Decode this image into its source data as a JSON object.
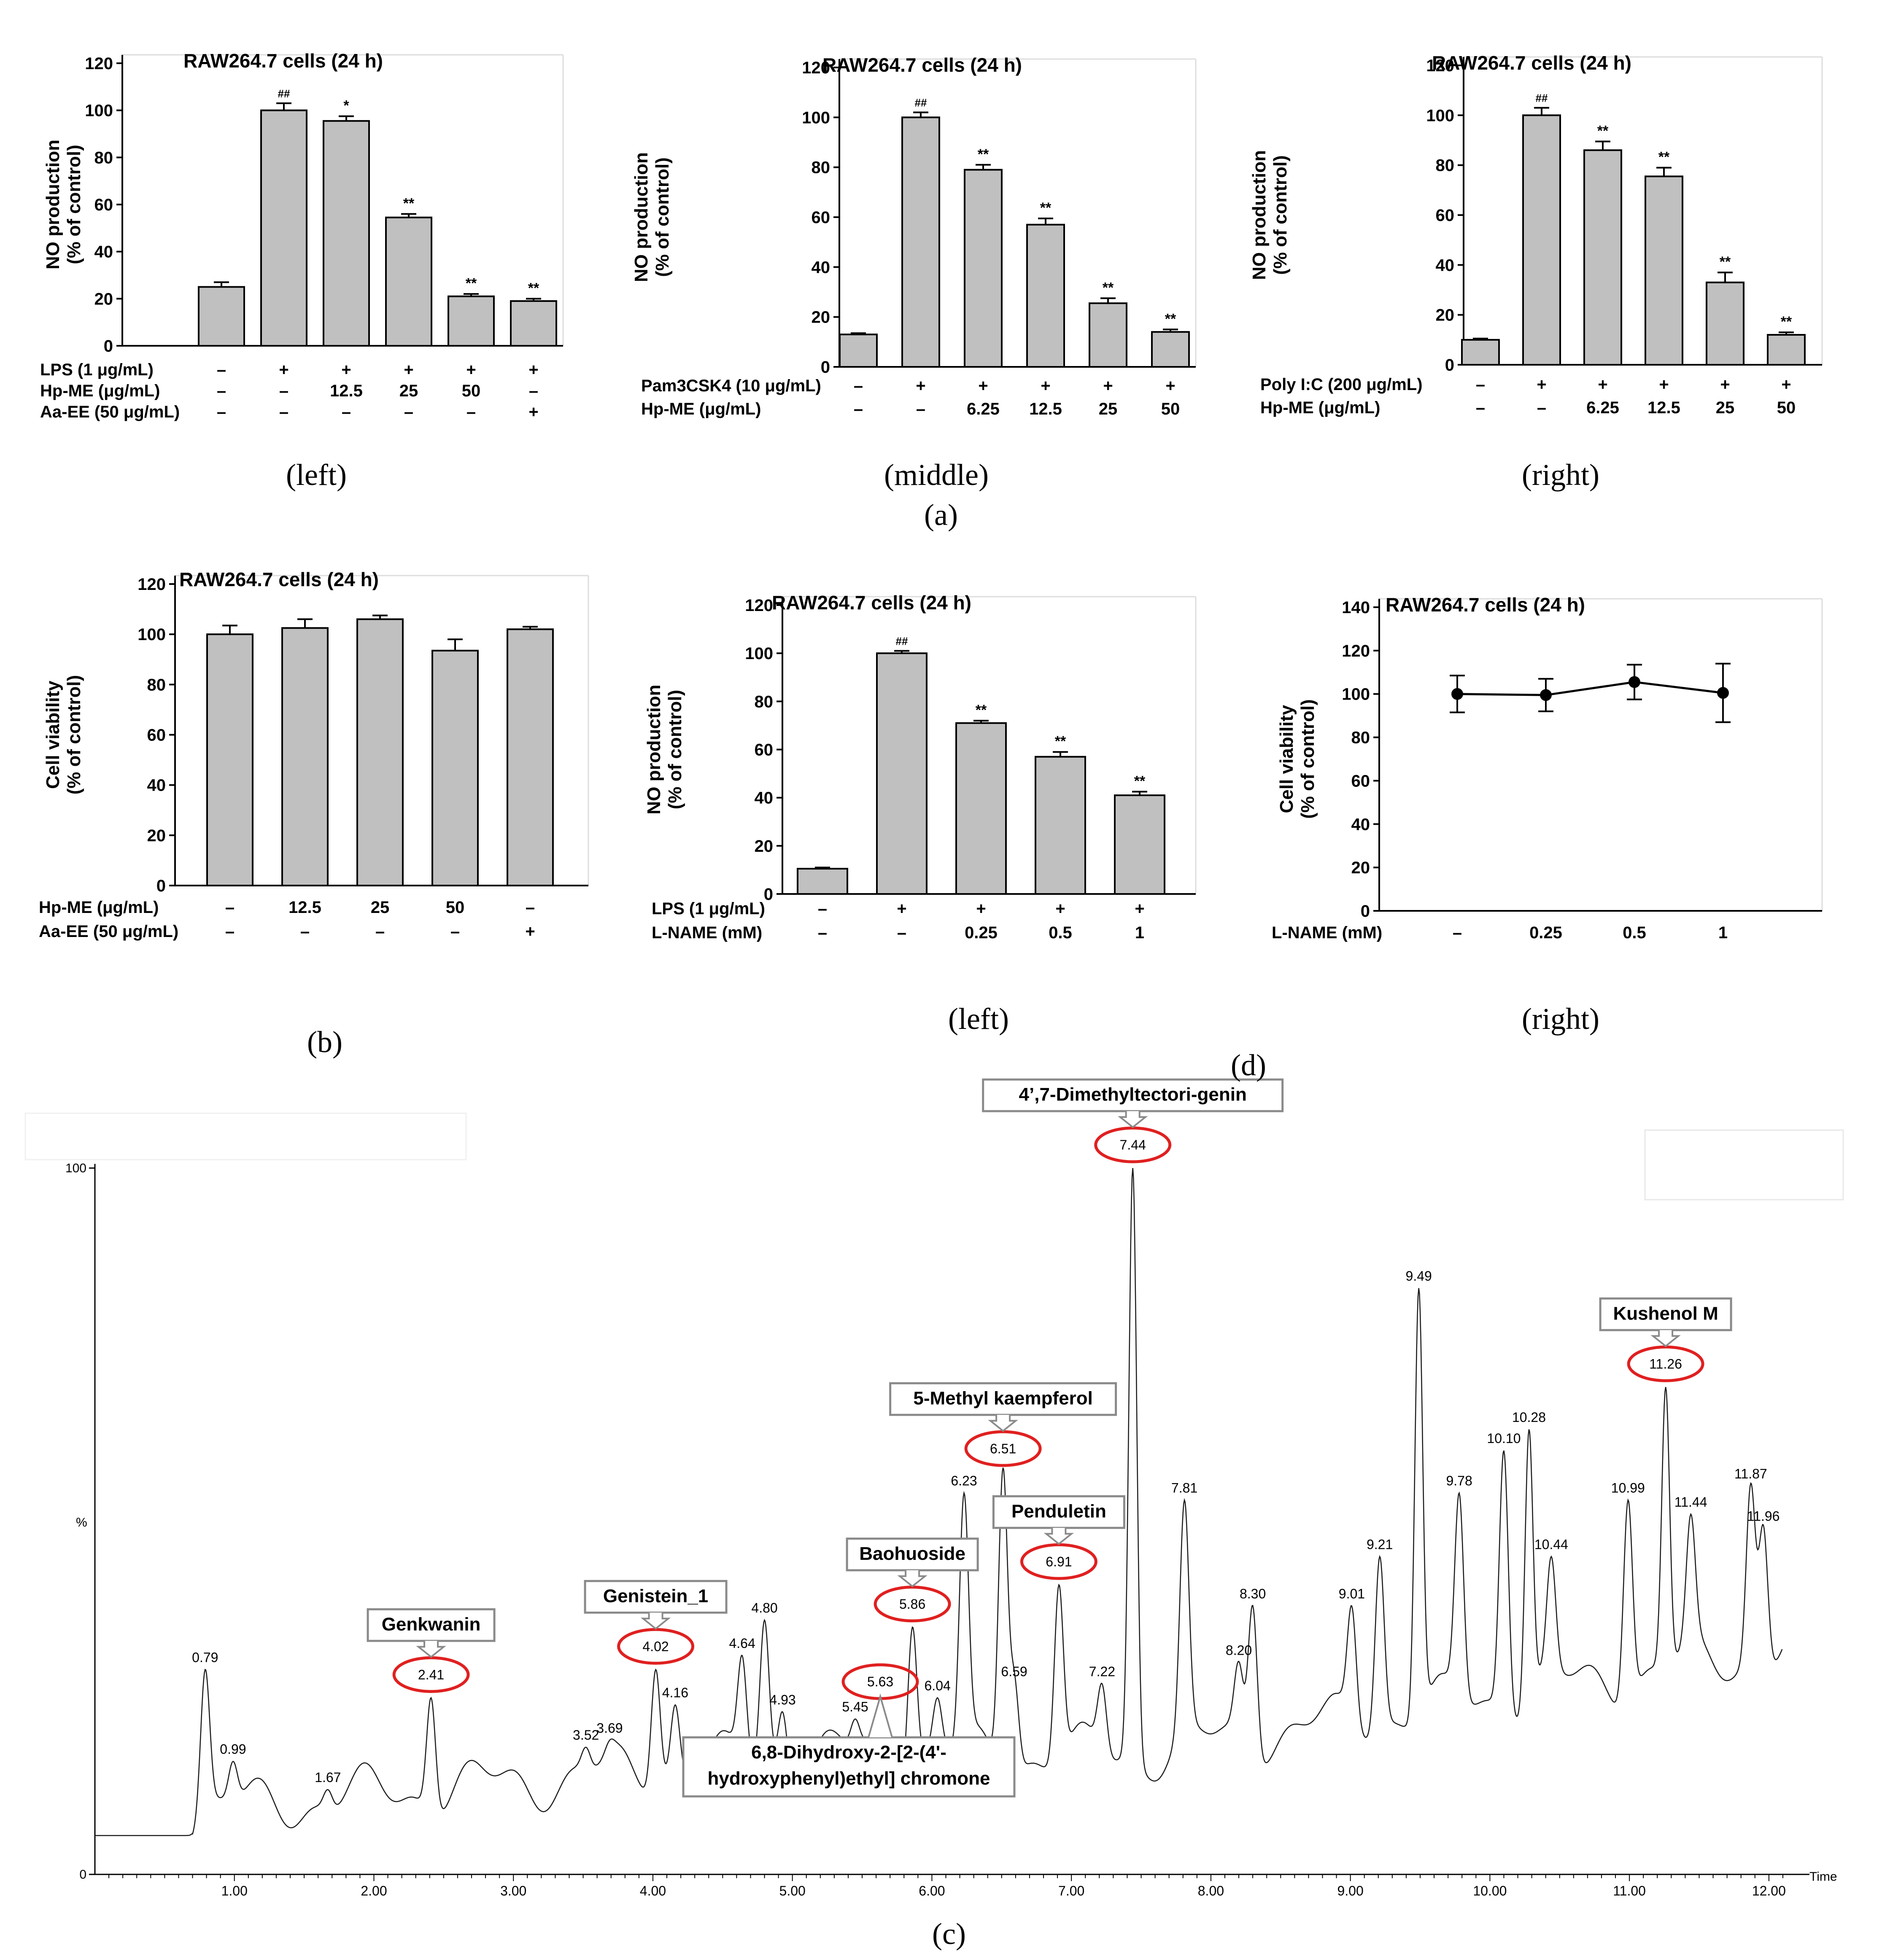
{
  "colors": {
    "bar_fill": "#c0c0c0",
    "axis": "#000000",
    "trace": "#1a1a1a",
    "ellipse": "#e02020",
    "box_border": "#8a8a8a"
  },
  "panel_labels": {
    "a": "(a)",
    "b": "(b)",
    "c": "(c)",
    "d": "(d)",
    "a_left": "(left)",
    "a_middle": "(middle)",
    "a_right": "(right)",
    "d_left": "(left)",
    "d_right": "(right)"
  },
  "chart_data": [
    {
      "id": "a-left",
      "type": "bar",
      "title": "RAW264.7 cells (24 h)",
      "ylabel": "NO production",
      "ylabel2": "(% of control)",
      "ylim": [
        0,
        120
      ],
      "yticks": [
        0,
        20,
        40,
        60,
        80,
        100,
        120
      ],
      "values": [
        25,
        100,
        95.5,
        54.5,
        21,
        19
      ],
      "errors": [
        2,
        3,
        2,
        1.5,
        1,
        1
      ],
      "marks": [
        "",
        "##",
        "*",
        "**",
        "**",
        "**"
      ],
      "conditions": [
        {
          "label": "LPS (1 μg/mL)",
          "values": [
            "–",
            "+",
            "+",
            "+",
            "+",
            "+"
          ]
        },
        {
          "label": "Hp-ME (μg/mL)",
          "values": [
            "–",
            "–",
            "12.5",
            "25",
            "50",
            "–"
          ]
        },
        {
          "label": "Aa-EE (50 μg/mL)",
          "values": [
            "–",
            "–",
            "–",
            "–",
            "–",
            "+"
          ]
        }
      ]
    },
    {
      "id": "a-middle",
      "type": "bar",
      "title": "RAW264.7 cells (24 h)",
      "ylabel": "NO production",
      "ylabel2": "(% of control)",
      "ylim": [
        0,
        120
      ],
      "yticks": [
        0,
        20,
        40,
        60,
        80,
        100,
        120
      ],
      "values": [
        13,
        100,
        79,
        57,
        25.5,
        14
      ],
      "errors": [
        0.5,
        2,
        2,
        2.5,
        2,
        1
      ],
      "marks": [
        "",
        "##",
        "**",
        "**",
        "**",
        "**"
      ],
      "conditions": [
        {
          "label": "Pam3CSK4 (10 μg/mL)",
          "values": [
            "–",
            "+",
            "+",
            "+",
            "+",
            "+"
          ]
        },
        {
          "label": "Hp-ME (μg/mL)",
          "values": [
            "–",
            "–",
            "6.25",
            "12.5",
            "25",
            "50"
          ]
        }
      ]
    },
    {
      "id": "a-right",
      "type": "bar",
      "title": "RAW264.7 cells (24 h)",
      "ylabel": "NO production",
      "ylabel2": "(% of control)",
      "ylim": [
        0,
        120
      ],
      "yticks": [
        0,
        20,
        40,
        60,
        80,
        100,
        120
      ],
      "values": [
        10,
        100,
        86,
        75.5,
        33,
        12
      ],
      "errors": [
        0.5,
        3,
        3.5,
        3.5,
        4,
        1
      ],
      "marks": [
        "",
        "##",
        "**",
        "**",
        "**",
        "**"
      ],
      "conditions": [
        {
          "label": "Poly I:C (200 μg/mL)",
          "values": [
            "–",
            "+",
            "+",
            "+",
            "+",
            "+"
          ]
        },
        {
          "label": "Hp-ME (μg/mL)",
          "values": [
            "–",
            "–",
            "6.25",
            "12.5",
            "25",
            "50"
          ]
        }
      ]
    },
    {
      "id": "b",
      "type": "bar",
      "title": "RAW264.7 cells (24 h)",
      "ylabel": "Cell viability",
      "ylabel2": "(% of control)",
      "ylim": [
        0,
        120
      ],
      "yticks": [
        0,
        20,
        40,
        60,
        80,
        100,
        120
      ],
      "values": [
        100,
        102.5,
        106,
        93.5,
        102
      ],
      "errors": [
        3.5,
        3.5,
        1.5,
        4.5,
        1
      ],
      "marks": [
        "",
        "",
        "",
        "",
        ""
      ],
      "conditions": [
        {
          "label": "Hp-ME (μg/mL)",
          "values": [
            "–",
            "12.5",
            "25",
            "50",
            "–"
          ]
        },
        {
          "label": "Aa-EE (50 μg/mL)",
          "values": [
            "–",
            "–",
            "–",
            "–",
            "+"
          ]
        }
      ]
    },
    {
      "id": "d-left",
      "type": "bar",
      "title": "RAW264.7 cells (24 h)",
      "ylabel": "NO production",
      "ylabel2": "(% of control)",
      "ylim": [
        0,
        120
      ],
      "yticks": [
        0,
        20,
        40,
        60,
        80,
        100,
        120
      ],
      "values": [
        10.5,
        100,
        71,
        57,
        41
      ],
      "errors": [
        0.5,
        1,
        1,
        2,
        1.5
      ],
      "marks": [
        "",
        "##",
        "**",
        "**",
        "**"
      ],
      "conditions": [
        {
          "label": "LPS (1 μg/mL)",
          "values": [
            "–",
            "+",
            "+",
            "+",
            "+"
          ]
        },
        {
          "label": "L-NAME (mM)",
          "values": [
            "–",
            "–",
            "0.25",
            "0.5",
            "1"
          ]
        }
      ]
    },
    {
      "id": "d-right",
      "type": "line",
      "title": "RAW264.7 cells (24 h)",
      "ylabel": "Cell viability",
      "ylabel2": "(% of control)",
      "ylim": [
        0,
        140
      ],
      "yticks": [
        0,
        20,
        40,
        60,
        80,
        100,
        120,
        140
      ],
      "values": [
        100,
        99.5,
        105.5,
        100.5
      ],
      "errors": [
        8.5,
        7.5,
        8,
        13.5
      ],
      "conditions": [
        {
          "label": "L-NAME (mM)",
          "values": [
            "–",
            "0.25",
            "0.5",
            "1"
          ]
        }
      ]
    },
    {
      "id": "c",
      "type": "line",
      "title": "",
      "ylabel": "%",
      "xlabel": "Time",
      "xlim": [
        0,
        12.2
      ],
      "ylim": [
        0,
        100
      ],
      "xticks": [
        1.0,
        2.0,
        3.0,
        4.0,
        5.0,
        6.0,
        7.0,
        8.0,
        9.0,
        10.0,
        11.0,
        12.0
      ],
      "ytick_labels": [
        "0",
        "100"
      ],
      "baseline": 5.5,
      "peaks": [
        {
          "t": 0.79,
          "h": 29,
          "label": "0.79"
        },
        {
          "t": 0.99,
          "h": 16,
          "label": "0.99"
        },
        {
          "t": 1.67,
          "h": 12,
          "label": "1.67"
        },
        {
          "t": 2.41,
          "h": 25,
          "label": "2.41"
        },
        {
          "t": 3.52,
          "h": 18,
          "label": "3.52"
        },
        {
          "t": 3.69,
          "h": 19,
          "label": "3.69"
        },
        {
          "t": 4.02,
          "h": 29,
          "label": "4.02"
        },
        {
          "t": 4.16,
          "h": 24,
          "label": "4.16"
        },
        {
          "t": 4.64,
          "h": 31,
          "label": "4.64"
        },
        {
          "t": 4.8,
          "h": 36,
          "label": "4.80"
        },
        {
          "t": 4.93,
          "h": 23,
          "label": "4.93"
        },
        {
          "t": 5.45,
          "h": 22,
          "label": "5.45"
        },
        {
          "t": 5.63,
          "h": 24,
          "label": "5.63"
        },
        {
          "t": 5.86,
          "h": 35,
          "label": "5.86"
        },
        {
          "t": 6.04,
          "h": 25,
          "label": "6.04"
        },
        {
          "t": 6.23,
          "h": 54,
          "label": "6.23"
        },
        {
          "t": 6.51,
          "h": 57,
          "label": "6.51"
        },
        {
          "t": 6.59,
          "h": 27,
          "label": "6.59"
        },
        {
          "t": 6.91,
          "h": 41,
          "label": "6.91"
        },
        {
          "t": 7.22,
          "h": 27,
          "label": "7.22"
        },
        {
          "t": 7.44,
          "h": 100,
          "label": "7.44"
        },
        {
          "t": 7.81,
          "h": 53,
          "label": "7.81"
        },
        {
          "t": 8.2,
          "h": 30,
          "label": "8.20"
        },
        {
          "t": 8.3,
          "h": 38,
          "label": "8.30"
        },
        {
          "t": 9.01,
          "h": 38,
          "label": "9.01"
        },
        {
          "t": 9.21,
          "h": 45,
          "label": "9.21"
        },
        {
          "t": 9.49,
          "h": 83,
          "label": "9.49"
        },
        {
          "t": 9.78,
          "h": 54,
          "label": "9.78"
        },
        {
          "t": 10.1,
          "h": 60,
          "label": "10.10"
        },
        {
          "t": 10.28,
          "h": 63,
          "label": "10.28"
        },
        {
          "t": 10.44,
          "h": 45,
          "label": "10.44"
        },
        {
          "t": 10.99,
          "h": 53,
          "label": "10.99"
        },
        {
          "t": 11.26,
          "h": 69,
          "label": "11.26"
        },
        {
          "t": 11.44,
          "h": 51,
          "label": "11.44"
        },
        {
          "t": 11.87,
          "h": 55,
          "label": "11.87"
        },
        {
          "t": 11.96,
          "h": 49,
          "label": "11.96"
        }
      ],
      "annotations": [
        {
          "name": "Genkwanin",
          "peak": "2.41"
        },
        {
          "name": "Genistein_1",
          "peak": "4.02"
        },
        {
          "name": "6,8-Dihydroxy-2-[2-(4'-",
          "name2": "hydroxyphenyl)ethyl] chromone",
          "peak": "5.63"
        },
        {
          "name": "Baohuoside",
          "peak": "5.86"
        },
        {
          "name": "5-Methyl kaempferol",
          "peak": "6.51"
        },
        {
          "name": "Penduletin",
          "peak": "6.91"
        },
        {
          "name": "4’,7-Dimethyltectori-genin",
          "peak": "7.44"
        },
        {
          "name": "Kushenol M",
          "peak": "11.26"
        }
      ]
    }
  ]
}
